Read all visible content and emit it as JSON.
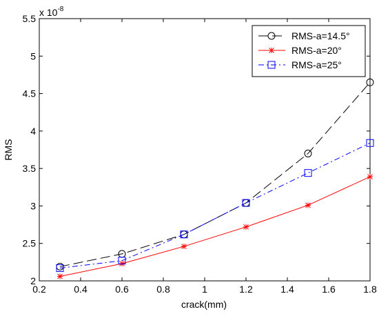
{
  "chart_data": {
    "type": "line",
    "xlabel": "crack(mm)",
    "ylabel": "RMS",
    "y_multiplier": {
      "base": "x 10",
      "exponent": "-8"
    },
    "xlim": [
      0.2,
      1.8
    ],
    "ylim": [
      2,
      5.5
    ],
    "x_ticks": [
      0.2,
      0.4,
      0.6,
      0.8,
      1,
      1.2,
      1.4,
      1.6,
      1.8
    ],
    "x_tick_labels": [
      "0.2",
      "0.4",
      "0.6",
      "0.8",
      "1",
      "1.2",
      "1.4",
      "1.6",
      "1.8"
    ],
    "y_ticks": [
      2,
      2.5,
      3,
      3.5,
      4,
      4.5,
      5,
      5.5
    ],
    "y_tick_labels": [
      "2",
      "2.5",
      "3",
      "3.5",
      "4",
      "4.5",
      "5",
      "5.5"
    ],
    "grid": false,
    "legend_position": "top-right",
    "x": [
      0.3,
      0.6,
      0.9,
      1.2,
      1.5,
      1.8
    ],
    "series": [
      {
        "name": "RMS-a=14.5°",
        "values": [
          2.19,
          2.36,
          2.62,
          3.04,
          3.7,
          4.65
        ],
        "color": "#000000",
        "marker": "circle",
        "line_style": "long-dash"
      },
      {
        "name": "RMS-a=20°",
        "values": [
          2.06,
          2.23,
          2.46,
          2.72,
          3.01,
          3.39
        ],
        "color": "#ff0000",
        "marker": "star",
        "line_style": "solid"
      },
      {
        "name": "RMS-a=25°",
        "values": [
          2.17,
          2.27,
          2.62,
          3.04,
          3.44,
          3.84
        ],
        "color": "#0000ff",
        "marker": "square",
        "line_style": "dash-dot"
      }
    ]
  }
}
